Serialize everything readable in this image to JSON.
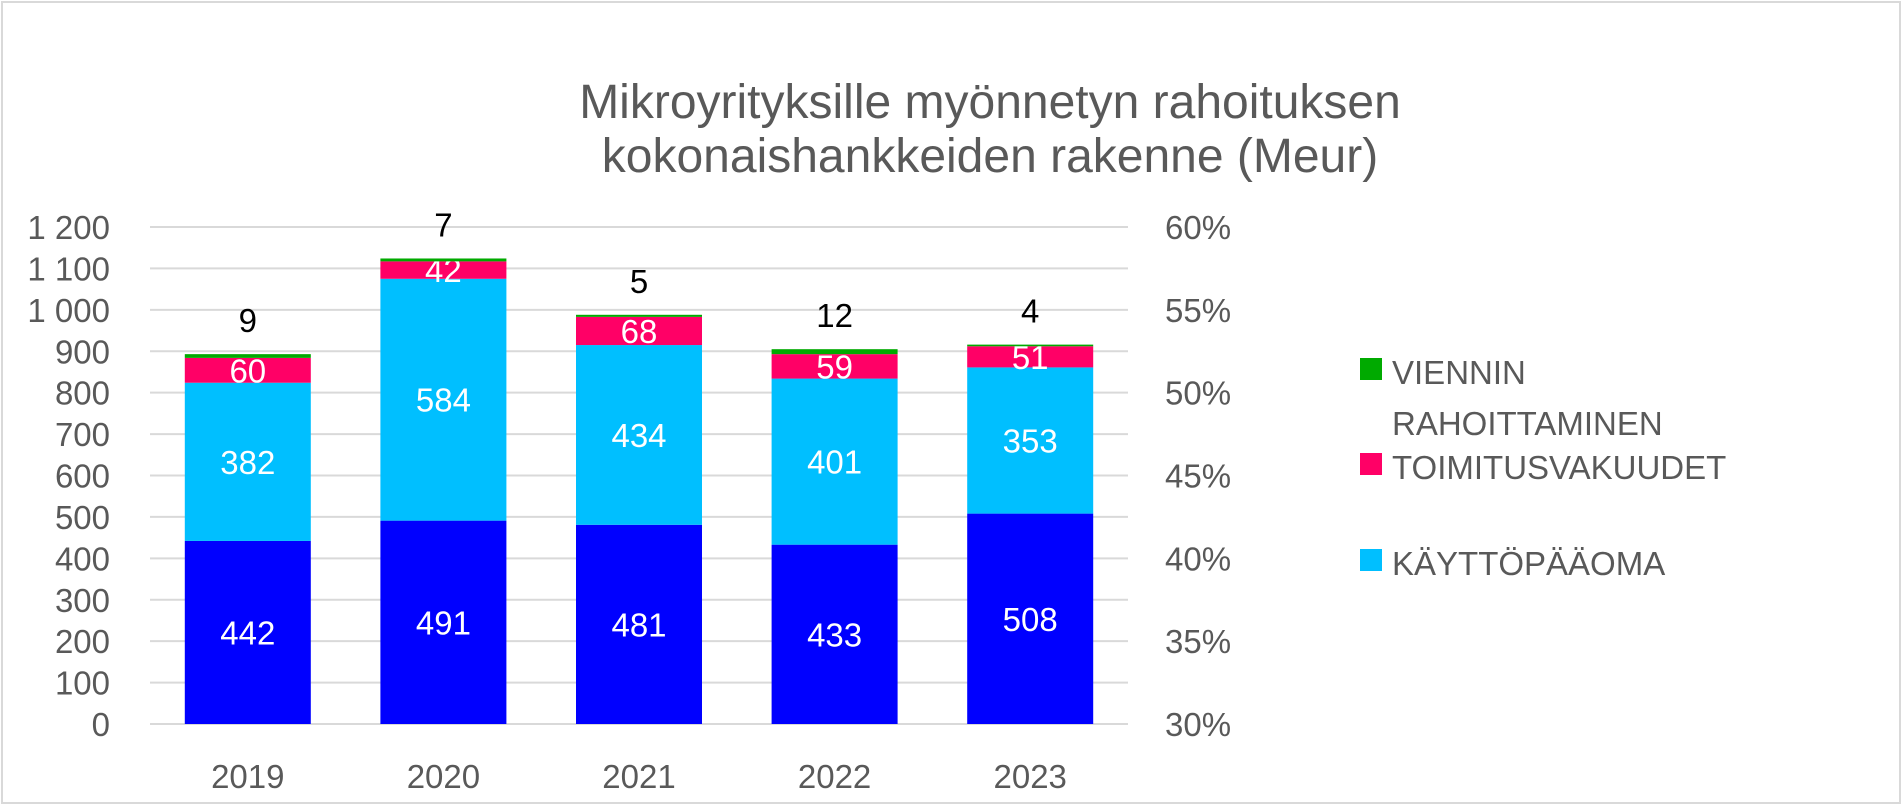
{
  "chart_data": {
    "type": "bar",
    "stacked": true,
    "title_lines": [
      "Mikroyrityksille myönnetyn rahoituksen",
      "kokonaishankkeiden rakenne (Meur)"
    ],
    "categories": [
      "2019",
      "2020",
      "2021",
      "2022",
      "2023"
    ],
    "series": [
      {
        "key": "base",
        "color": "#0000FF",
        "values": [
          442,
          491,
          481,
          433,
          508
        ]
      },
      {
        "key": "kayttopaaoma",
        "name": "KÄYTTÖPÄÄOMA",
        "color": "#00BFFF",
        "values": [
          382,
          584,
          434,
          401,
          353
        ]
      },
      {
        "key": "toimitusvakuudet",
        "name": "TOIMITUSVAKUUDET",
        "color": "#FF0066",
        "values": [
          60,
          42,
          68,
          59,
          51
        ]
      },
      {
        "key": "viennin",
        "name": "VIENNIN RAHOITTAMINEN",
        "color": "#00AA00",
        "values": [
          9,
          7,
          5,
          12,
          4
        ]
      }
    ],
    "data_labels": {
      "base": [
        "442",
        "491",
        "481",
        "433",
        "508"
      ],
      "kayttopaaoma": [
        "382",
        "584",
        "434",
        "401",
        "353"
      ],
      "toimitusvakuudet": [
        "60",
        "42",
        "68",
        "59",
        "51"
      ],
      "viennin": [
        "9",
        "7",
        "5",
        "12",
        "4"
      ]
    },
    "y_left": {
      "ylim": [
        0,
        1200
      ],
      "ticks": [
        0,
        100,
        200,
        300,
        400,
        500,
        600,
        700,
        800,
        900,
        1000,
        1100,
        1200
      ],
      "tick_labels": [
        "0",
        "100",
        "200",
        "300",
        "400",
        "500",
        "600",
        "700",
        "800",
        "900",
        "1 000",
        "1 100",
        "1 200"
      ]
    },
    "y_right": {
      "ylim": [
        0.3,
        0.6
      ],
      "tick_labels": [
        "30%",
        "35%",
        "40%",
        "45%",
        "50%",
        "55%",
        "60%"
      ]
    },
    "grid": true,
    "legend": {
      "placement": "right",
      "entries": [
        {
          "lines": [
            "VIENNIN",
            "RAHOITTAMINEN"
          ],
          "color": "#00AA00"
        },
        {
          "lines": [
            "TOIMITUSVAKUUDET"
          ],
          "color": "#FF0066"
        },
        {
          "lines": [
            "KÄYTTÖPÄÄOMA"
          ],
          "color": "#00BFFF"
        }
      ]
    }
  }
}
